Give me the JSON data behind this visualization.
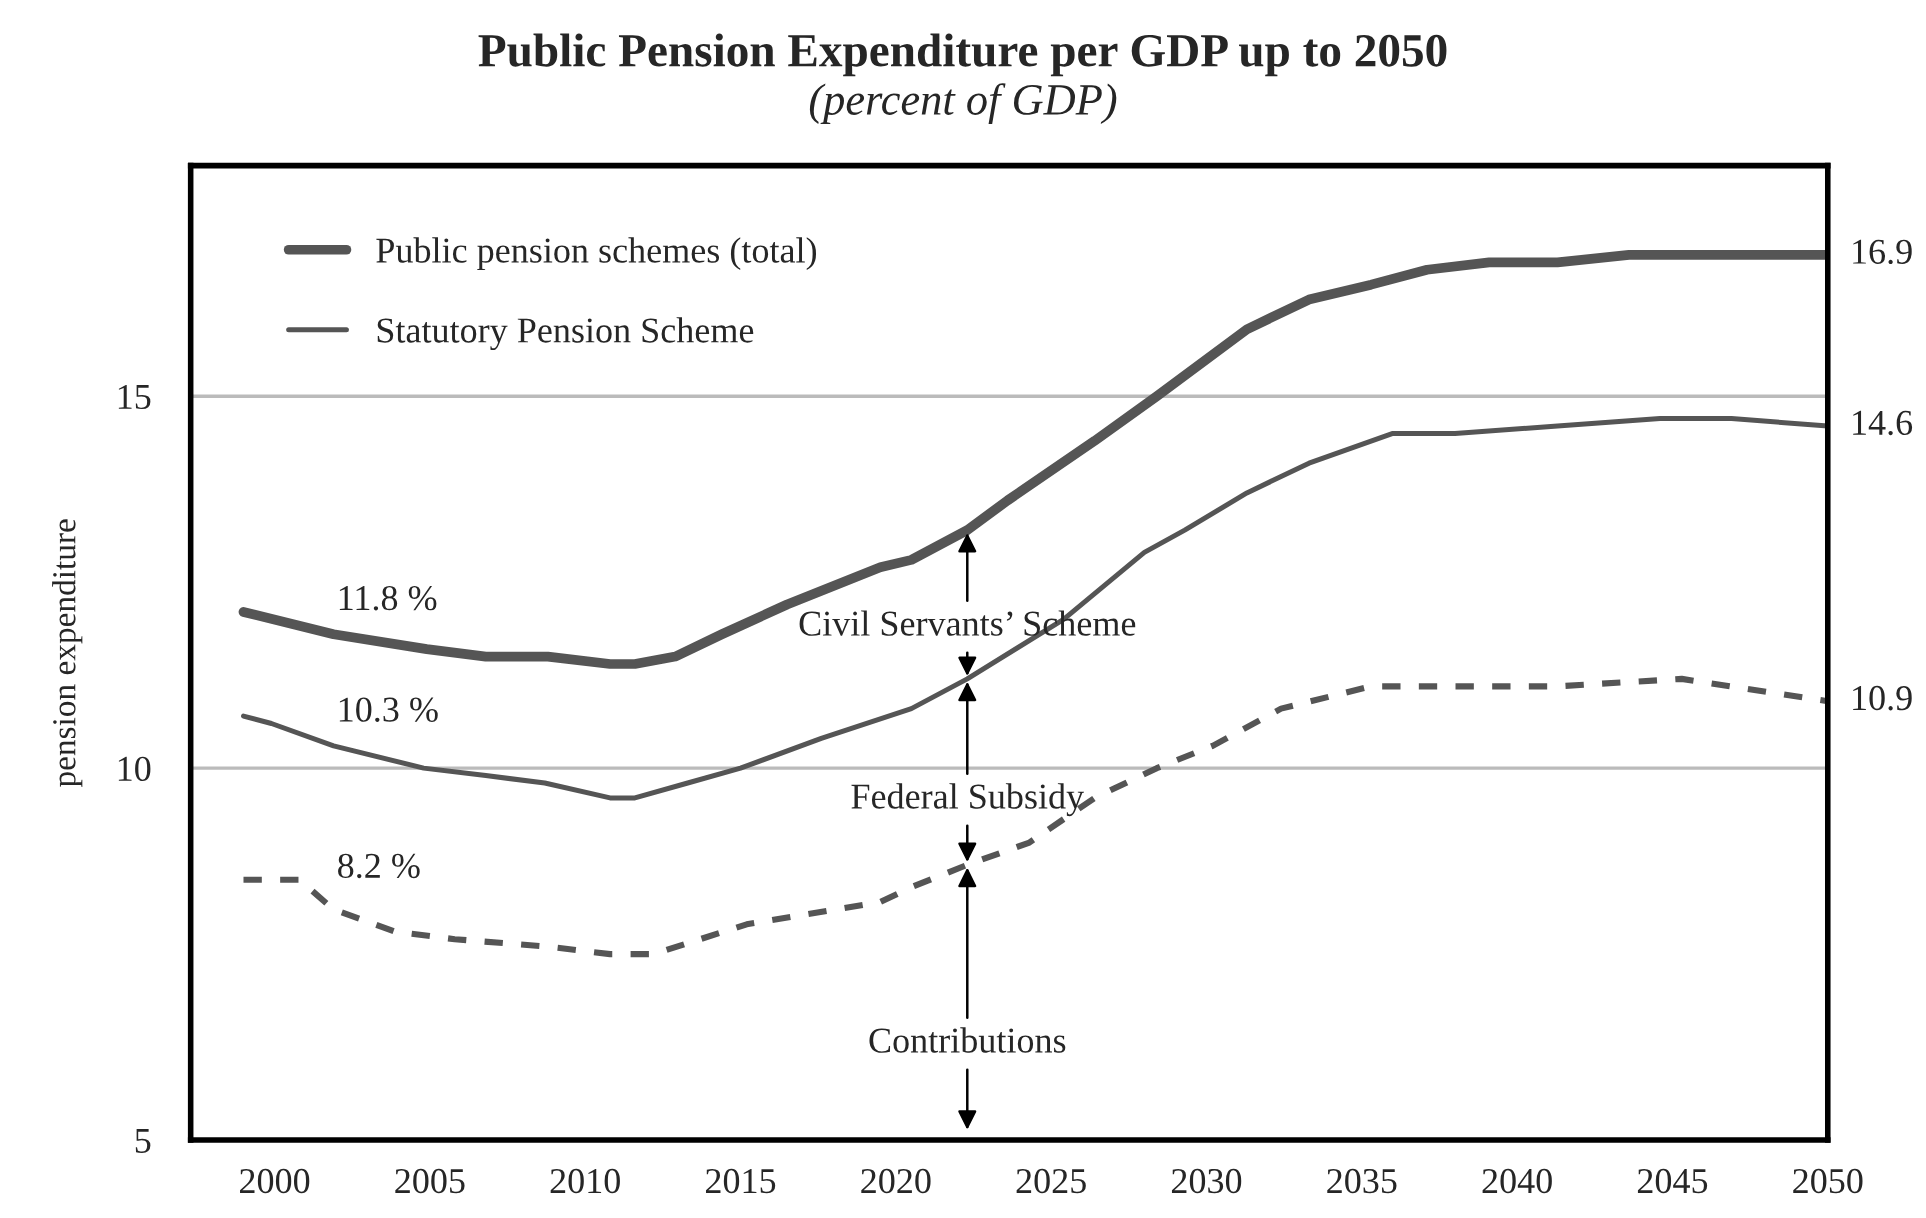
{
  "chart_data": {
    "type": "line",
    "title": "Public Pension Expenditure per GDP up to 2050",
    "subtitle": "(percent of GDP)",
    "ylabel": "pension expenditure",
    "series": [
      {
        "name": "Public pension schemes (total)",
        "color": "#555555",
        "line_style": "solid",
        "x": [
          1999,
          2001.9,
          2004.9,
          2006.8,
          2008.8,
          2010.8,
          2011.6,
          2012.9,
          2014.4,
          2016.5,
          2019.5,
          2020.5,
          2022.3,
          2023.6,
          2026.4,
          2028.4,
          2031.3,
          2033.3,
          2035.3,
          2037.1,
          2039.1,
          2041.3,
          2043.6,
          2045.3,
          2048.0,
          2050
        ],
        "values": [
          12.1,
          11.8,
          11.6,
          11.5,
          11.5,
          11.4,
          11.4,
          11.5,
          11.8,
          12.2,
          12.7,
          12.8,
          13.2,
          13.6,
          14.4,
          15.0,
          15.9,
          16.3,
          16.5,
          16.7,
          16.8,
          16.8,
          16.9,
          16.9,
          16.9,
          16.9
        ]
      },
      {
        "name": "Statutory Pension Scheme",
        "color": "#555555",
        "line_style": "solid",
        "x": [
          1999,
          1999.9,
          2001.9,
          2004.8,
          2006.8,
          2008.7,
          2010.8,
          2011.6,
          2013.3,
          2015.0,
          2017.6,
          2020.5,
          2022.3,
          2025.4,
          2028.0,
          2029.3,
          2031.3,
          2033.3,
          2036.0,
          2038.0,
          2041.3,
          2044.6,
          2046.9,
          2050
        ],
        "values": [
          10.7,
          10.6,
          10.3,
          10.0,
          9.9,
          9.8,
          9.6,
          9.6,
          9.8,
          10.0,
          10.4,
          10.8,
          11.2,
          12.0,
          12.9,
          13.2,
          13.7,
          14.1,
          14.5,
          14.5,
          14.6,
          14.7,
          14.7,
          14.6
        ]
      },
      {
        "color": "#555555",
        "line_style": "dashed",
        "x": [
          1999,
          2000.8,
          2001.9,
          2003.9,
          2005.8,
          2008.8,
          2010.8,
          2012.2,
          2015.2,
          2019.5,
          2020.5,
          2022.3,
          2024.3,
          2026.4,
          2028.4,
          2030.2,
          2032.4,
          2035.3,
          2038.0,
          2041.3,
          2045.3,
          2050
        ],
        "values": [
          8.5,
          8.5,
          8.1,
          7.8,
          7.7,
          7.6,
          7.5,
          7.5,
          7.9,
          8.2,
          8.4,
          8.7,
          9.0,
          9.6,
          10.0,
          10.3,
          10.8,
          11.1,
          11.1,
          11.1,
          11.2,
          10.9
        ]
      }
    ],
    "annotations": [
      {
        "text": "11.8 %",
        "x": 2002,
        "y": 11.8
      },
      {
        "text": "10.3 %",
        "x": 2002,
        "y": 10.3
      },
      {
        "text": "8.2 %",
        "x": 2002,
        "y": 8.2
      },
      {
        "text": "16.9",
        "x": 2050,
        "y": 16.9
      },
      {
        "text": "14.6",
        "x": 2050,
        "y": 14.6
      },
      {
        "text": "10.9",
        "x": 2050,
        "y": 10.9
      },
      {
        "text": "Civil Servants’ Scheme",
        "x": 2022.3,
        "y": 13.2
      },
      {
        "text": "Federal Subsidy",
        "x": 2022.3,
        "y": 11.2
      },
      {
        "text": "Contributions",
        "x": 2022.3,
        "y": 8.7
      }
    ],
    "xlim": [
      1997.3,
      2050
    ],
    "xticks": [
      2000,
      2005,
      2010,
      2015,
      2020,
      2025,
      2030,
      2035,
      2040,
      2045,
      2050
    ],
    "ylim": [
      5,
      18.1
    ],
    "yticks": [
      5,
      10,
      15
    ],
    "grid": "y",
    "legend": "top left"
  }
}
